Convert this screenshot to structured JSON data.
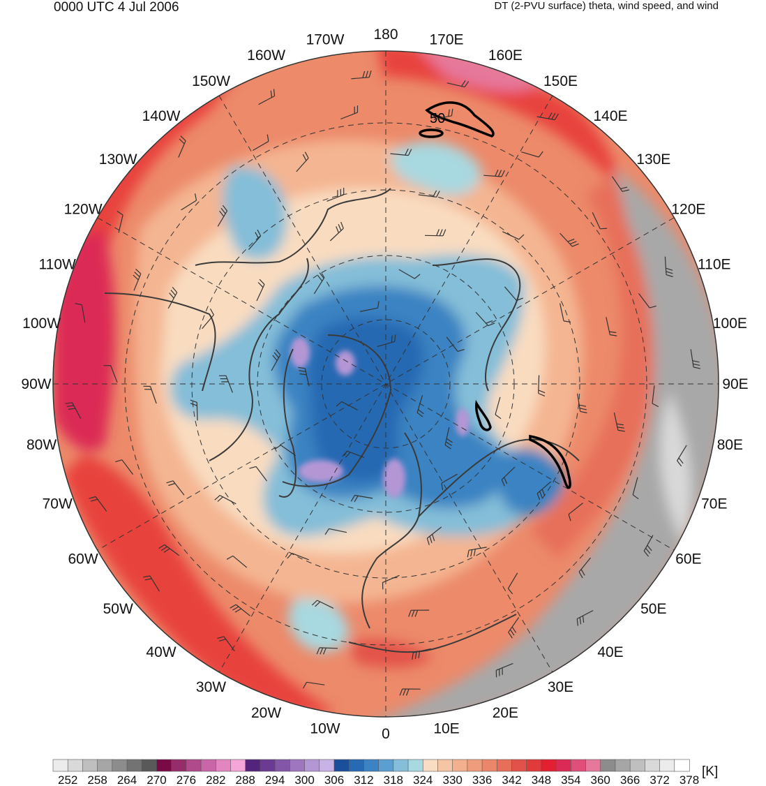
{
  "header": {
    "time": "0000 UTC 4 Jul 2006",
    "field": "DT (2-PVU surface) theta, wind speed, and wind"
  },
  "map": {
    "projection": "north polar stereographic",
    "longitude_labels": [
      "180",
      "170E",
      "160E",
      "150E",
      "140E",
      "130E",
      "120E",
      "110E",
      "100E",
      "90E",
      "80E",
      "70E",
      "60E",
      "50E",
      "40E",
      "30E",
      "20E",
      "10E",
      "0",
      "10W",
      "20W",
      "30W",
      "40W",
      "50W",
      "60W",
      "70W",
      "80W",
      "90W",
      "100W",
      "110W",
      "120W",
      "130W",
      "140W",
      "150W",
      "160W",
      "170W"
    ],
    "contour_label": "50",
    "colors": {
      "warm_red": "#e8423c",
      "orange": "#ec8a6a",
      "light_orange": "#f4b592",
      "cream": "#f9dcc0",
      "light_blue": "#a8d8e0",
      "mid_blue": "#4a8ec4",
      "deep_blue": "#2a5fa8",
      "purple": "#a78bd0",
      "magenta": "#d63a6a",
      "gray": "#a8a8a8"
    }
  },
  "colorbar": {
    "colors": [
      "#ececec",
      "#d9d9d9",
      "#bfbfbf",
      "#a6a6a6",
      "#8c8c8c",
      "#737373",
      "#595959",
      "#7a0a46",
      "#962d6a",
      "#b04a8a",
      "#c966a8",
      "#e385c0",
      "#f5a6d8",
      "#54237b",
      "#6b3a93",
      "#8456a8",
      "#9e76bf",
      "#b596d5",
      "#c9b3e6",
      "#1b4f9c",
      "#2869b3",
      "#3b83c2",
      "#5a9fcf",
      "#84bed8",
      "#a8d8e0",
      "#f8ddc4",
      "#f5c6a4",
      "#f2b08e",
      "#ee9c7c",
      "#ea876a",
      "#e76f5a",
      "#e3524a",
      "#e13a3a",
      "#e22030",
      "#db2a55",
      "#e04f7a",
      "#e6789c",
      "#8c8c8c",
      "#a6a6a6",
      "#bfbfbf",
      "#d9d9d9",
      "#ececec",
      "#ffffff"
    ],
    "tick_labels": [
      "252",
      "258",
      "264",
      "270",
      "276",
      "282",
      "288",
      "294",
      "300",
      "306",
      "312",
      "318",
      "324",
      "330",
      "336",
      "342",
      "348",
      "354",
      "360",
      "366",
      "372",
      "378"
    ],
    "unit": "[K]"
  }
}
